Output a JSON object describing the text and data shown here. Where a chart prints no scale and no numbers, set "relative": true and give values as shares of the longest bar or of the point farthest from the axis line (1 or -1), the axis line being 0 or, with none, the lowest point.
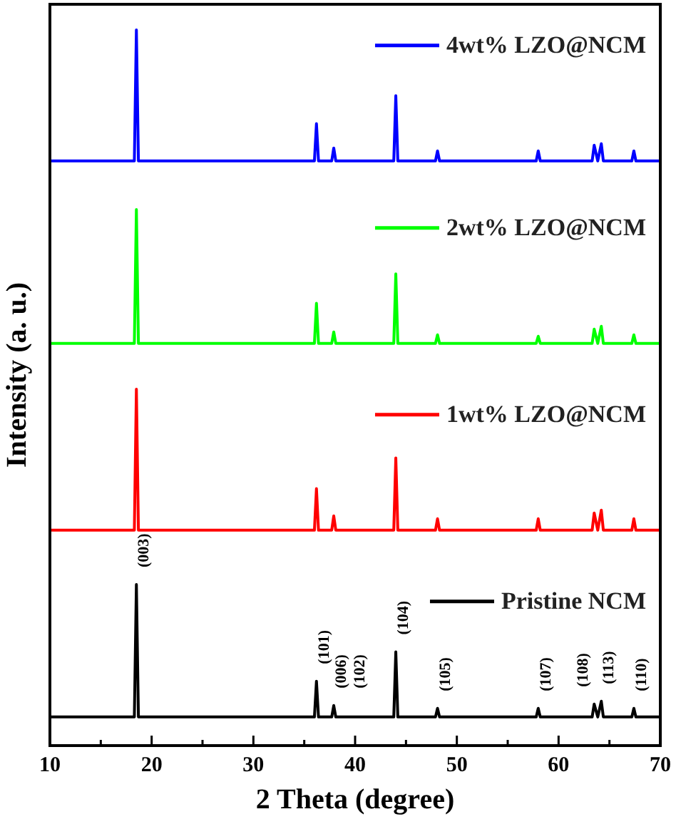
{
  "chart_data": {
    "type": "line",
    "relative": true,
    "legend": "right",
    "xlabel": "2 Theta (degree)",
    "ylabel": "Intensity (a. u.)",
    "xlim": [
      10,
      70
    ],
    "xticks": [
      10,
      {
        "value": 15,
        "label": null
      },
      20,
      {
        "value": 25,
        "label": null
      },
      30,
      {
        "value": 35,
        "label": null
      },
      40,
      {
        "value": 45,
        "label": null
      },
      50,
      {
        "value": 55,
        "label": null
      },
      60,
      {
        "value": 65,
        "label": null
      },
      70
    ],
    "x": [
      10,
      18.3,
      18.5,
      18.7,
      36.0,
      36.2,
      36.4,
      37.7,
      37.9,
      38.1,
      43.8,
      44.0,
      44.2,
      47.9,
      48.1,
      48.3,
      57.8,
      58.0,
      58.2,
      63.3,
      63.5,
      63.85,
      64.2,
      64.4,
      67.2,
      67.4,
      67.6,
      70
    ],
    "series": [
      {
        "name": "4wt% LZO@NCM",
        "color": "#0000ff",
        "values": [
          0.817,
          0.817,
          1.0,
          0.817,
          0.817,
          0.869,
          0.817,
          0.817,
          0.835,
          0.817,
          0.817,
          0.908,
          0.817,
          0.817,
          0.831,
          0.817,
          0.817,
          0.831,
          0.817,
          0.817,
          0.839,
          0.817,
          0.841,
          0.817,
          0.817,
          0.831,
          0.817,
          0.817
        ]
      },
      {
        "name": "2wt% LZO@NCM",
        "color": "#00ff00",
        "values": [
          0.562,
          0.562,
          0.749,
          0.562,
          0.562,
          0.618,
          0.562,
          0.562,
          0.578,
          0.562,
          0.562,
          0.659,
          0.562,
          0.562,
          0.574,
          0.562,
          0.562,
          0.572,
          0.562,
          0.562,
          0.582,
          0.562,
          0.586,
          0.562,
          0.562,
          0.574,
          0.562,
          0.562
        ]
      },
      {
        "name": "1wt% LZO@NCM",
        "color": "#ff0000",
        "values": [
          0.301,
          0.301,
          0.498,
          0.301,
          0.301,
          0.359,
          0.301,
          0.301,
          0.321,
          0.301,
          0.301,
          0.402,
          0.301,
          0.301,
          0.317,
          0.301,
          0.301,
          0.317,
          0.301,
          0.301,
          0.325,
          0.301,
          0.329,
          0.301,
          0.301,
          0.317,
          0.301,
          0.301
        ]
      },
      {
        "name": "Pristine NCM",
        "color": "#000000",
        "values": [
          0.04,
          0.04,
          0.225,
          0.04,
          0.04,
          0.09,
          0.04,
          0.04,
          0.056,
          0.04,
          0.04,
          0.131,
          0.04,
          0.04,
          0.052,
          0.04,
          0.04,
          0.052,
          0.04,
          0.04,
          0.058,
          0.04,
          0.062,
          0.04,
          0.04,
          0.052,
          0.04,
          0.04
        ]
      }
    ],
    "annotations": [
      {
        "text": "(003)",
        "x": 18.5,
        "y": 0.225
      },
      {
        "text": "(101)",
        "x": 36.2,
        "y": 0.09
      },
      {
        "text": "(006)",
        "x": 37.9,
        "y": 0.056
      },
      {
        "text": "(102)",
        "x": 37.9,
        "y": 0.056
      },
      {
        "text": "(104)",
        "x": 44.0,
        "y": 0.131
      },
      {
        "text": "(105)",
        "x": 48.1,
        "y": 0.052
      },
      {
        "text": "(107)",
        "x": 58.0,
        "y": 0.052
      },
      {
        "text": "(108)",
        "x": 63.5,
        "y": 0.058
      },
      {
        "text": "(113)",
        "x": 64.2,
        "y": 0.062
      },
      {
        "text": "(110)",
        "x": 67.4,
        "y": 0.052
      }
    ]
  }
}
